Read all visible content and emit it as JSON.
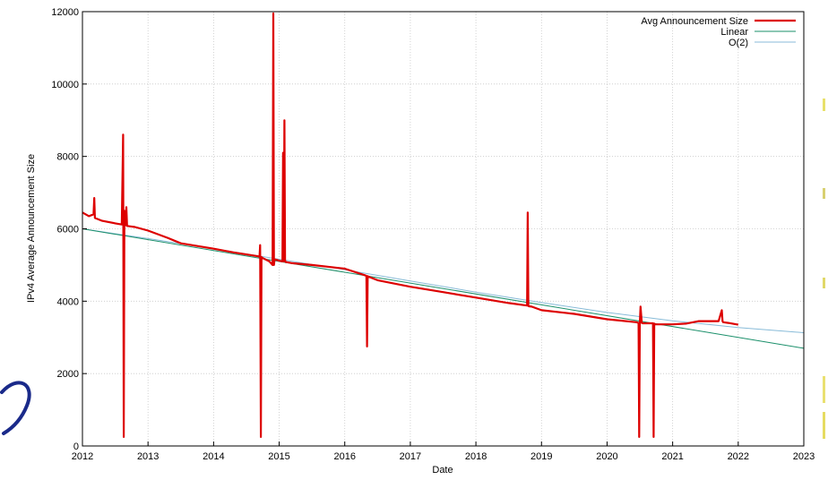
{
  "chart_data": {
    "type": "line",
    "ylabel": "IPv4 Average Announcement Size",
    "xlabel": "Date",
    "xlim": [
      2012,
      2023
    ],
    "ylim": [
      0,
      12000
    ],
    "x_ticks": [
      "2012",
      "2013",
      "2014",
      "2015",
      "2016",
      "2017",
      "2018",
      "2019",
      "2020",
      "2021",
      "2022",
      "2023"
    ],
    "y_ticks": [
      "0",
      "2000",
      "4000",
      "6000",
      "8000",
      "10000",
      "12000"
    ],
    "grid": true,
    "legend_position": "top-right",
    "series": [
      {
        "name": "Avg Announcement Size",
        "color": "#dd0000",
        "x": [
          2012.0,
          2012.1,
          2012.17,
          2012.18,
          2012.19,
          2012.3,
          2012.5,
          2012.6,
          2012.62,
          2012.63,
          2012.64,
          2012.66,
          2012.67,
          2012.68,
          2012.8,
          2013.0,
          2013.3,
          2013.5,
          2014.0,
          2014.3,
          2014.65,
          2014.7,
          2014.71,
          2014.72,
          2014.73,
          2014.74,
          2014.85,
          2014.9,
          2014.91,
          2014.92,
          2014.93,
          2014.95,
          2015.0,
          2015.05,
          2015.06,
          2015.07,
          2015.08,
          2015.09,
          2015.1,
          2015.11,
          2015.2,
          2015.5,
          2016.0,
          2016.3,
          2016.33,
          2016.34,
          2016.35,
          2016.36,
          2016.5,
          2017.0,
          2017.5,
          2018.0,
          2018.5,
          2018.78,
          2018.79,
          2018.8,
          2018.81,
          2018.85,
          2019.0,
          2019.5,
          2020.0,
          2020.45,
          2020.48,
          2020.49,
          2020.5,
          2020.51,
          2020.53,
          2020.55,
          2020.7,
          2020.71,
          2020.72,
          2020.73,
          2020.74,
          2021.0,
          2021.2,
          2021.4,
          2021.7,
          2021.75,
          2021.76,
          2021.77,
          2021.85,
          2022.0
        ],
        "y": [
          6450,
          6350,
          6400,
          6850,
          6300,
          6220,
          6150,
          6120,
          8600,
          250,
          6500,
          6100,
          6600,
          6080,
          6050,
          5950,
          5750,
          5600,
          5450,
          5350,
          5250,
          5230,
          5550,
          250,
          5220,
          5200,
          5100,
          5000,
          11950,
          5000,
          5150,
          5150,
          5120,
          5100,
          8100,
          5100,
          9000,
          5120,
          5080,
          5080,
          5050,
          5000,
          4900,
          4720,
          4700,
          2750,
          4690,
          4680,
          4580,
          4400,
          4250,
          4100,
          3950,
          3880,
          6450,
          3870,
          3860,
          3850,
          3750,
          3650,
          3500,
          3420,
          3400,
          250,
          3400,
          3850,
          3400,
          3390,
          3390,
          250,
          3380,
          3370,
          3360,
          3360,
          3380,
          3450,
          3450,
          3750,
          3450,
          3420,
          3400,
          3350
        ]
      },
      {
        "name": "Linear",
        "color": "#1a8f6a",
        "x": [
          2012,
          2023
        ],
        "y": [
          6000,
          2700
        ]
      },
      {
        "name": "O(2)",
        "color": "#88bbd8",
        "x": [
          2012,
          2013,
          2014,
          2015,
          2016,
          2017,
          2018,
          2019,
          2020,
          2021,
          2022,
          2023
        ],
        "y": [
          6000,
          5730,
          5450,
          5160,
          4870,
          4560,
          4250,
          3960,
          3690,
          3460,
          3270,
          3130
        ]
      }
    ]
  }
}
